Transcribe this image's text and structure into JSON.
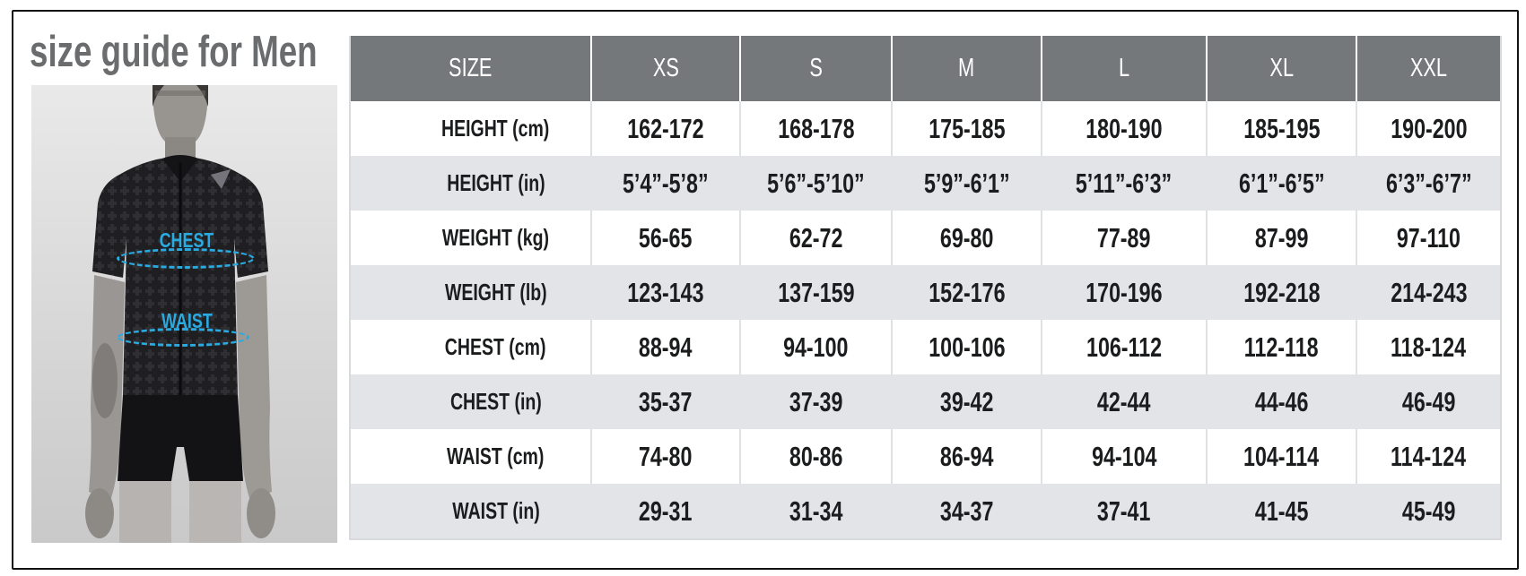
{
  "page": {
    "title": "size guide for Men"
  },
  "figure": {
    "chest_label": "CHEST",
    "waist_label": "WAIST"
  },
  "colors": {
    "accent_cyan": "#29abe2",
    "header_gray": "#75787b",
    "row_alt_gray": "#e2e4e8",
    "title_gray": "#6a6c6e"
  },
  "table": {
    "columns": [
      "SIZE",
      "XS",
      "S",
      "M",
      "L",
      "XL",
      "XXL"
    ],
    "rows": [
      {
        "label": "HEIGHT (cm)",
        "values": [
          "162-172",
          "168-178",
          "175-185",
          "180-190",
          "185-195",
          "190-200"
        ]
      },
      {
        "label": "HEIGHT (in)",
        "values": [
          "5’4”-5’8”",
          "5’6”-5’10”",
          "5’9”-6’1”",
          "5’11”-6’3”",
          "6’1”-6’5”",
          "6’3”-6’7”"
        ]
      },
      {
        "label": "WEIGHT (kg)",
        "values": [
          "56-65",
          "62-72",
          "69-80",
          "77-89",
          "87-99",
          "97-110"
        ]
      },
      {
        "label": "WEIGHT (lb)",
        "values": [
          "123-143",
          "137-159",
          "152-176",
          "170-196",
          "192-218",
          "214-243"
        ]
      },
      {
        "label": "CHEST (cm)",
        "values": [
          "88-94",
          "94-100",
          "100-106",
          "106-112",
          "112-118",
          "118-124"
        ]
      },
      {
        "label": "CHEST (in)",
        "values": [
          "35-37",
          "37-39",
          "39-42",
          "42-44",
          "44-46",
          "46-49"
        ]
      },
      {
        "label": "WAIST (cm)",
        "values": [
          "74-80",
          "80-86",
          "86-94",
          "94-104",
          "104-114",
          "114-124"
        ]
      },
      {
        "label": "WAIST (in)",
        "values": [
          "29-31",
          "31-34",
          "34-37",
          "37-41",
          "41-45",
          "45-49"
        ]
      }
    ]
  }
}
